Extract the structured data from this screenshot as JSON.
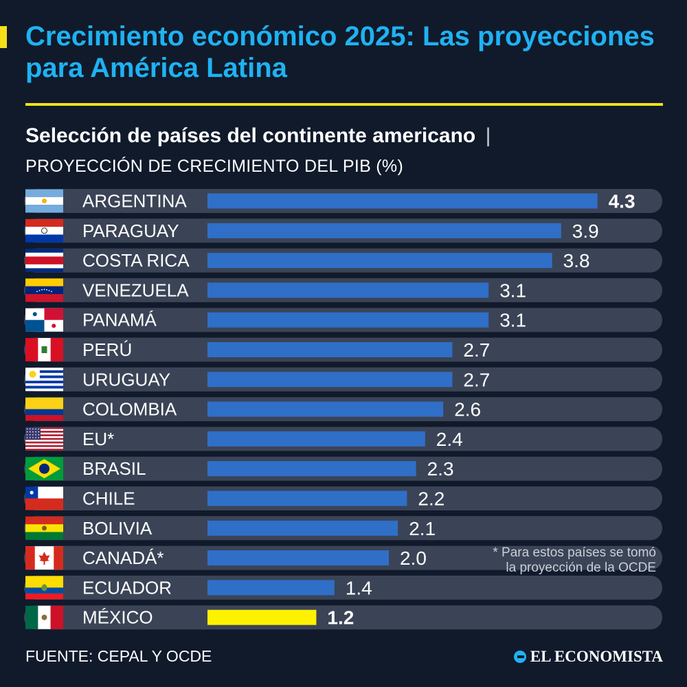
{
  "header": {
    "title": "Crecimiento económico 2025: Las proyecciones para América Latina",
    "subtitle": "Selección de países del continente americano",
    "subtitle_sep": "|",
    "metric": "PROYECCIÓN DE CRECIMIENTO DEL PIB (%)"
  },
  "colors": {
    "title": "#1fb2f2",
    "accent": "#f5e11a",
    "bar": "#2f6fc8",
    "highlight_bar": "#fff200",
    "row_background": "#3b4456",
    "background": "#101a2b"
  },
  "chart_data": {
    "type": "bar",
    "orientation": "horizontal",
    "title": "PROYECCIÓN DE CRECIMIENTO DEL PIB (%)",
    "xlabel": "",
    "ylabel": "",
    "xlim": [
      0,
      4.3
    ],
    "grid": false,
    "categories": [
      "ARGENTINA",
      "PARAGUAY",
      "COSTA RICA",
      "VENEZUELA",
      "PANAMÁ",
      "PERÚ",
      "URUGUAY",
      "COLOMBIA",
      "EU*",
      "BRASIL",
      "CHILE",
      "BOLIVIA",
      "CANADÁ*",
      "ECUADOR",
      "MÉXICO"
    ],
    "values": [
      4.3,
      3.9,
      3.8,
      3.1,
      3.1,
      2.7,
      2.7,
      2.6,
      2.4,
      2.3,
      2.2,
      2.1,
      2.0,
      1.4,
      1.2
    ],
    "value_labels": [
      "4.3",
      "3.9",
      "3.8",
      "3.1",
      "3.1",
      "2.7",
      "2.7",
      "2.6",
      "2.4",
      "2.3",
      "2.2",
      "2.1",
      "2.0",
      "1.4",
      "1.2"
    ],
    "flags": [
      "argentina-flag",
      "paraguay-flag",
      "costa-rica-flag",
      "venezuela-flag",
      "panama-flag",
      "peru-flag",
      "uruguay-flag",
      "colombia-flag",
      "usa-flag",
      "brazil-flag",
      "chile-flag",
      "bolivia-flag",
      "canada-flag",
      "ecuador-flag",
      "mexico-flag"
    ],
    "highlighted": [
      "ARGENTINA",
      "MÉXICO"
    ],
    "annotation": "* Para estos países se tomó la proyección de la OCDE"
  },
  "note": {
    "line1": "* Para estos países se tomó",
    "line2": "la proyección de la OCDE"
  },
  "footer": {
    "source": "FUENTE: CEPAL Y OCDE",
    "brand": "EL ECONOMISTA"
  }
}
